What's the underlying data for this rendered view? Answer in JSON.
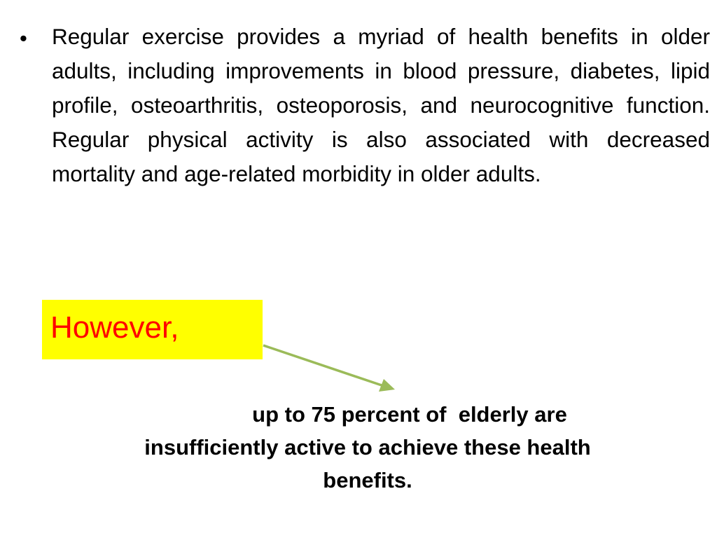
{
  "bullet": {
    "symbol": "•",
    "text": "Regular exercise provides a myriad of health benefits in older adults, including improvements in blood pressure, diabetes, lipid profile, osteoarthritis, osteoporosis, and neurocognitive function. Regular physical activity is also associated with decreased mortality and age-related morbidity in older adults."
  },
  "callout": {
    "text": "However,",
    "background_color": "#ffff00",
    "text_color": "#ff0000"
  },
  "arrow": {
    "color": "#9bbb59"
  },
  "conclusion": {
    "line1": "up to 75 percent of  elderly are",
    "line2": "insufficiently active to achieve these health",
    "line3": "benefits."
  }
}
